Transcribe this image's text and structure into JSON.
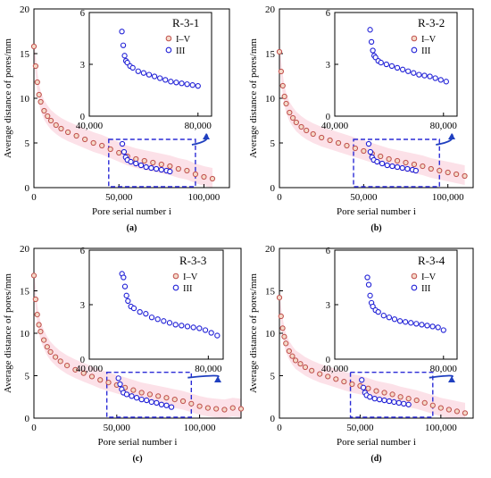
{
  "figure": {
    "panel_labels": [
      "(a)",
      "(b)",
      "(c)",
      "(d)"
    ]
  },
  "colors": {
    "series_iv": "#c0504d",
    "series_iii": "#1f1fd6",
    "frame_dashed": "#2b2bd6",
    "arrow": "#1f3fbf",
    "band": "#f9c9d6"
  },
  "chart_data": [
    {
      "type": "scatter",
      "panel": "(a)",
      "ylabel": "Average distance of pores/mm",
      "xlabel": "Pore serial number i",
      "xlim": [
        0,
        115000
      ],
      "ylim": [
        0,
        20
      ],
      "xticks": [
        0,
        50000,
        100000
      ],
      "xtick_labels": [
        "0",
        "50,000",
        "100,000"
      ],
      "yticks": [
        0,
        5,
        10,
        15,
        20
      ],
      "ytick_labels": [
        "0",
        "5",
        "10",
        "15",
        "20"
      ],
      "series": [
        {
          "name": "I–V",
          "x": [
            0,
            1000,
            2000,
            3000,
            4000,
            6000,
            8000,
            10000,
            13000,
            16000,
            20000,
            25000,
            30000,
            35000,
            40000,
            45000,
            50000,
            55000,
            60000,
            65000,
            70000,
            75000,
            80000,
            85000,
            90000,
            95000,
            100000,
            105000
          ],
          "y": [
            15.8,
            13.6,
            11.8,
            10.4,
            9.6,
            8.6,
            8.0,
            7.5,
            7.0,
            6.6,
            6.2,
            5.8,
            5.4,
            5.0,
            4.7,
            4.3,
            3.9,
            3.5,
            3.2,
            3.0,
            2.8,
            2.6,
            2.4,
            2.1,
            1.9,
            1.5,
            1.2,
            1.0
          ]
        },
        {
          "name": "III",
          "x": [
            52000,
            53000,
            54000,
            55000,
            57000,
            60000,
            63000,
            66000,
            69000,
            72000,
            75000,
            78000,
            80000
          ],
          "y": [
            4.9,
            4.0,
            3.4,
            3.1,
            2.9,
            2.7,
            2.5,
            2.3,
            2.2,
            2.1,
            2.0,
            1.9,
            1.8
          ]
        }
      ],
      "inset": {
        "title": "R-3-1",
        "xlim": [
          40000,
          85000
        ],
        "ylim": [
          0,
          6
        ],
        "xticks": [
          40000,
          80000
        ],
        "xtick_labels": [
          "40,000",
          "80,000"
        ],
        "yticks": [
          0,
          3,
          6
        ],
        "ytick_labels": [
          "0",
          "3",
          "6"
        ],
        "legend": [
          "I–V",
          "III"
        ],
        "x": [
          52000,
          52500,
          53000,
          53500,
          54000,
          55000,
          56000,
          58000,
          60000,
          62000,
          64000,
          66000,
          68000,
          70000,
          72000,
          74000,
          76000,
          78000,
          80000
        ],
        "y": [
          4.9,
          4.1,
          3.5,
          3.2,
          3.1,
          2.9,
          2.8,
          2.6,
          2.5,
          2.4,
          2.3,
          2.2,
          2.1,
          2.0,
          1.95,
          1.9,
          1.85,
          1.8,
          1.75
        ]
      }
    },
    {
      "type": "scatter",
      "panel": "(b)",
      "ylabel": "Average distance of pores/mm",
      "xlabel": "Pore serial number i",
      "xlim": [
        0,
        115000
      ],
      "ylim": [
        0,
        20
      ],
      "xticks": [
        0,
        50000,
        100000
      ],
      "xtick_labels": [
        "0",
        "50,000",
        "100,000"
      ],
      "yticks": [
        0,
        5,
        10,
        15,
        20
      ],
      "ytick_labels": [
        "0",
        "5",
        "10",
        "15",
        "20"
      ],
      "series": [
        {
          "name": "I–V",
          "x": [
            0,
            1000,
            2000,
            3000,
            4000,
            6000,
            8000,
            10000,
            13000,
            16000,
            20000,
            25000,
            30000,
            35000,
            40000,
            45000,
            50000,
            55000,
            60000,
            65000,
            70000,
            75000,
            80000,
            85000,
            90000,
            95000,
            100000,
            105000,
            110000
          ],
          "y": [
            15.2,
            13.0,
            11.4,
            10.2,
            9.4,
            8.4,
            7.8,
            7.3,
            6.8,
            6.4,
            6.0,
            5.6,
            5.3,
            5.0,
            4.7,
            4.4,
            4.1,
            3.8,
            3.5,
            3.2,
            3.0,
            2.8,
            2.6,
            2.4,
            2.1,
            1.9,
            1.7,
            1.5,
            1.3
          ]
        },
        {
          "name": "III",
          "x": [
            53000,
            54000,
            55000,
            56000,
            58000,
            61000,
            64000,
            67000,
            70000,
            73000,
            76000,
            79000,
            81000
          ],
          "y": [
            4.9,
            4.0,
            3.4,
            3.1,
            2.9,
            2.7,
            2.5,
            2.4,
            2.3,
            2.2,
            2.1,
            2.0,
            1.9
          ]
        }
      ],
      "inset": {
        "title": "R-3-2",
        "xlim": [
          40000,
          85000
        ],
        "ylim": [
          0,
          6
        ],
        "xticks": [
          40000,
          80000
        ],
        "xtick_labels": [
          "40,000",
          "80,000"
        ],
        "yticks": [
          0,
          3,
          6
        ],
        "ytick_labels": [
          "0",
          "3",
          "6"
        ],
        "legend": [
          "I–V",
          "III"
        ],
        "x": [
          53000,
          53500,
          54000,
          54500,
          55000,
          56000,
          57000,
          59000,
          61000,
          63000,
          65000,
          67000,
          69000,
          71000,
          73000,
          75000,
          77000,
          79000,
          81000
        ],
        "y": [
          5.0,
          4.3,
          3.8,
          3.5,
          3.4,
          3.2,
          3.1,
          3.0,
          2.9,
          2.8,
          2.7,
          2.6,
          2.5,
          2.4,
          2.35,
          2.3,
          2.2,
          2.1,
          2.0
        ]
      }
    },
    {
      "type": "scatter",
      "panel": "(c)",
      "ylabel": "Average distance of pores/mm",
      "xlabel": "Pore serial number i",
      "xlim": [
        0,
        125000
      ],
      "ylim": [
        0,
        20
      ],
      "xticks": [
        0,
        50000,
        100000
      ],
      "xtick_labels": [
        "0",
        "50,000",
        "100,000"
      ],
      "yticks": [
        0,
        5,
        10,
        15,
        20
      ],
      "ytick_labels": [
        "0",
        "5",
        "10",
        "15",
        "20"
      ],
      "series": [
        {
          "name": "I–V",
          "x": [
            0,
            1000,
            2000,
            3000,
            4000,
            6000,
            8000,
            10000,
            13000,
            16000,
            20000,
            25000,
            30000,
            35000,
            40000,
            45000,
            50000,
            55000,
            60000,
            65000,
            70000,
            75000,
            80000,
            85000,
            90000,
            95000,
            100000,
            105000,
            110000,
            115000,
            120000,
            125000
          ],
          "y": [
            16.8,
            14.0,
            12.2,
            11.0,
            10.2,
            9.2,
            8.4,
            7.8,
            7.2,
            6.7,
            6.2,
            5.7,
            5.3,
            4.9,
            4.5,
            4.2,
            3.9,
            3.6,
            3.3,
            3.0,
            2.8,
            2.6,
            2.4,
            2.2,
            2.0,
            1.7,
            1.4,
            1.2,
            1.1,
            1.0,
            1.2,
            1.1
          ]
        },
        {
          "name": "III",
          "x": [
            51000,
            52000,
            53000,
            54000,
            56000,
            59000,
            62000,
            65000,
            68000,
            71000,
            74000,
            77000,
            80000,
            83000
          ],
          "y": [
            4.7,
            4.0,
            3.4,
            3.0,
            2.8,
            2.6,
            2.4,
            2.2,
            2.1,
            1.9,
            1.8,
            1.6,
            1.5,
            1.3
          ]
        }
      ],
      "inset": {
        "title": "R-3-3",
        "xlim": [
          40000,
          85000
        ],
        "ylim": [
          0,
          6
        ],
        "xticks": [
          40000,
          80000
        ],
        "xtick_labels": [
          "40,000",
          "80,000"
        ],
        "yticks": [
          0,
          3,
          6
        ],
        "ytick_labels": [
          "0",
          "3",
          "6"
        ],
        "legend": [
          "I–V",
          "III"
        ],
        "x": [
          51000,
          51500,
          52000,
          52500,
          53000,
          54000,
          55000,
          57000,
          59000,
          61000,
          63000,
          65000,
          67000,
          69000,
          71000,
          73000,
          75000,
          77000,
          79000,
          81000,
          83000
        ],
        "y": [
          4.7,
          4.5,
          4.0,
          3.5,
          3.2,
          2.9,
          2.8,
          2.6,
          2.5,
          2.3,
          2.2,
          2.1,
          2.0,
          1.9,
          1.85,
          1.8,
          1.75,
          1.7,
          1.6,
          1.45,
          1.3
        ]
      }
    },
    {
      "type": "scatter",
      "panel": "(d)",
      "ylabel": "Average distance of pores/mm",
      "xlabel": "Pore serial number i",
      "xlim": [
        0,
        120000
      ],
      "ylim": [
        0,
        20
      ],
      "xticks": [
        0,
        50000,
        100000
      ],
      "xtick_labels": [
        "0",
        "50,000",
        "100,000"
      ],
      "yticks": [
        0,
        5,
        10,
        15,
        20
      ],
      "ytick_labels": [
        "0",
        "5",
        "10",
        "15",
        "20"
      ],
      "series": [
        {
          "name": "I–V",
          "x": [
            0,
            1000,
            2000,
            3000,
            4000,
            6000,
            8000,
            10000,
            13000,
            16000,
            20000,
            25000,
            30000,
            35000,
            40000,
            45000,
            50000,
            55000,
            60000,
            65000,
            70000,
            75000,
            80000,
            85000,
            90000,
            95000,
            100000,
            105000,
            110000,
            115000
          ],
          "y": [
            14.2,
            12.0,
            10.6,
            9.6,
            8.8,
            7.9,
            7.3,
            6.8,
            6.4,
            6.0,
            5.6,
            5.2,
            4.9,
            4.6,
            4.3,
            4.0,
            3.8,
            3.5,
            3.2,
            3.0,
            2.8,
            2.5,
            2.3,
            2.1,
            1.8,
            1.5,
            1.2,
            1.0,
            0.8,
            0.6
          ]
        },
        {
          "name": "III",
          "x": [
            51000,
            52000,
            53000,
            54000,
            56000,
            59000,
            62000,
            65000,
            68000,
            71000,
            74000,
            77000,
            80000
          ],
          "y": [
            4.5,
            3.6,
            3.0,
            2.7,
            2.5,
            2.3,
            2.2,
            2.1,
            2.0,
            1.9,
            1.8,
            1.7,
            1.6
          ]
        }
      ],
      "inset": {
        "title": "R-3-4",
        "xlim": [
          40000,
          85000
        ],
        "ylim": [
          0,
          6
        ],
        "xticks": [
          40000,
          80000
        ],
        "xtick_labels": [
          "40,000",
          "80,000"
        ],
        "yticks": [
          0,
          3,
          6
        ],
        "ytick_labels": [
          "0",
          "3",
          "6"
        ],
        "legend": [
          "I–V",
          "III"
        ],
        "x": [
          52000,
          52500,
          53000,
          53500,
          54000,
          55000,
          56000,
          58000,
          60000,
          62000,
          64000,
          66000,
          68000,
          70000,
          72000,
          74000,
          76000,
          78000,
          80000
        ],
        "y": [
          4.5,
          4.1,
          3.5,
          3.1,
          2.9,
          2.7,
          2.6,
          2.4,
          2.3,
          2.2,
          2.1,
          2.05,
          2.0,
          1.95,
          1.9,
          1.85,
          1.8,
          1.75,
          1.6
        ]
      }
    }
  ]
}
